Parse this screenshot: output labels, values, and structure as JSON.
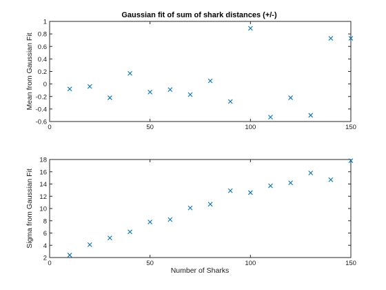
{
  "chart_data": [
    {
      "type": "scatter",
      "title": "Gaussian fit of sum of shark distances (+/-)",
      "xlabel": "",
      "ylabel": "Mean from Gaussian Fit",
      "xlim": [
        0,
        150
      ],
      "ylim": [
        -0.6,
        1
      ],
      "xticks": [
        0,
        50,
        100,
        150
      ],
      "xtick_labels": [
        "0",
        "50",
        "100",
        "150"
      ],
      "yticks": [
        -0.6,
        -0.4,
        -0.2,
        0,
        0.2,
        0.4,
        0.6,
        0.8,
        1
      ],
      "ytick_labels": [
        "-0.6",
        "-0.4",
        "-0.2",
        "0",
        "0.2",
        "0.4",
        "0.6",
        "0.8",
        "1"
      ],
      "grid": false,
      "marker": "x",
      "color": "#0072bd",
      "x": [
        10,
        20,
        30,
        40,
        50,
        60,
        70,
        80,
        90,
        100,
        110,
        120,
        130,
        140,
        150
      ],
      "y": [
        -0.08,
        -0.04,
        -0.22,
        0.17,
        -0.13,
        -0.09,
        -0.17,
        0.05,
        -0.28,
        0.89,
        -0.53,
        -0.22,
        -0.5,
        0.73,
        0.73
      ]
    },
    {
      "type": "scatter",
      "title": "",
      "xlabel": "Number of Sharks",
      "ylabel": "Sigma from Gaussian Fit",
      "xlim": [
        0,
        150
      ],
      "ylim": [
        2,
        18
      ],
      "xticks": [
        0,
        50,
        100,
        150
      ],
      "xtick_labels": [
        "0",
        "50",
        "100",
        "150"
      ],
      "yticks": [
        2,
        4,
        6,
        8,
        10,
        12,
        14,
        16,
        18
      ],
      "ytick_labels": [
        "2",
        "4",
        "6",
        "8",
        "10",
        "12",
        "14",
        "16",
        "18"
      ],
      "grid": false,
      "marker": "x",
      "color": "#0072bd",
      "x": [
        10,
        20,
        30,
        40,
        50,
        60,
        70,
        80,
        90,
        100,
        110,
        120,
        130,
        140,
        150
      ],
      "y": [
        2.4,
        4.1,
        5.2,
        6.2,
        7.8,
        8.2,
        10.1,
        10.7,
        12.9,
        12.6,
        13.7,
        14.2,
        15.8,
        14.7,
        17.8
      ]
    }
  ]
}
